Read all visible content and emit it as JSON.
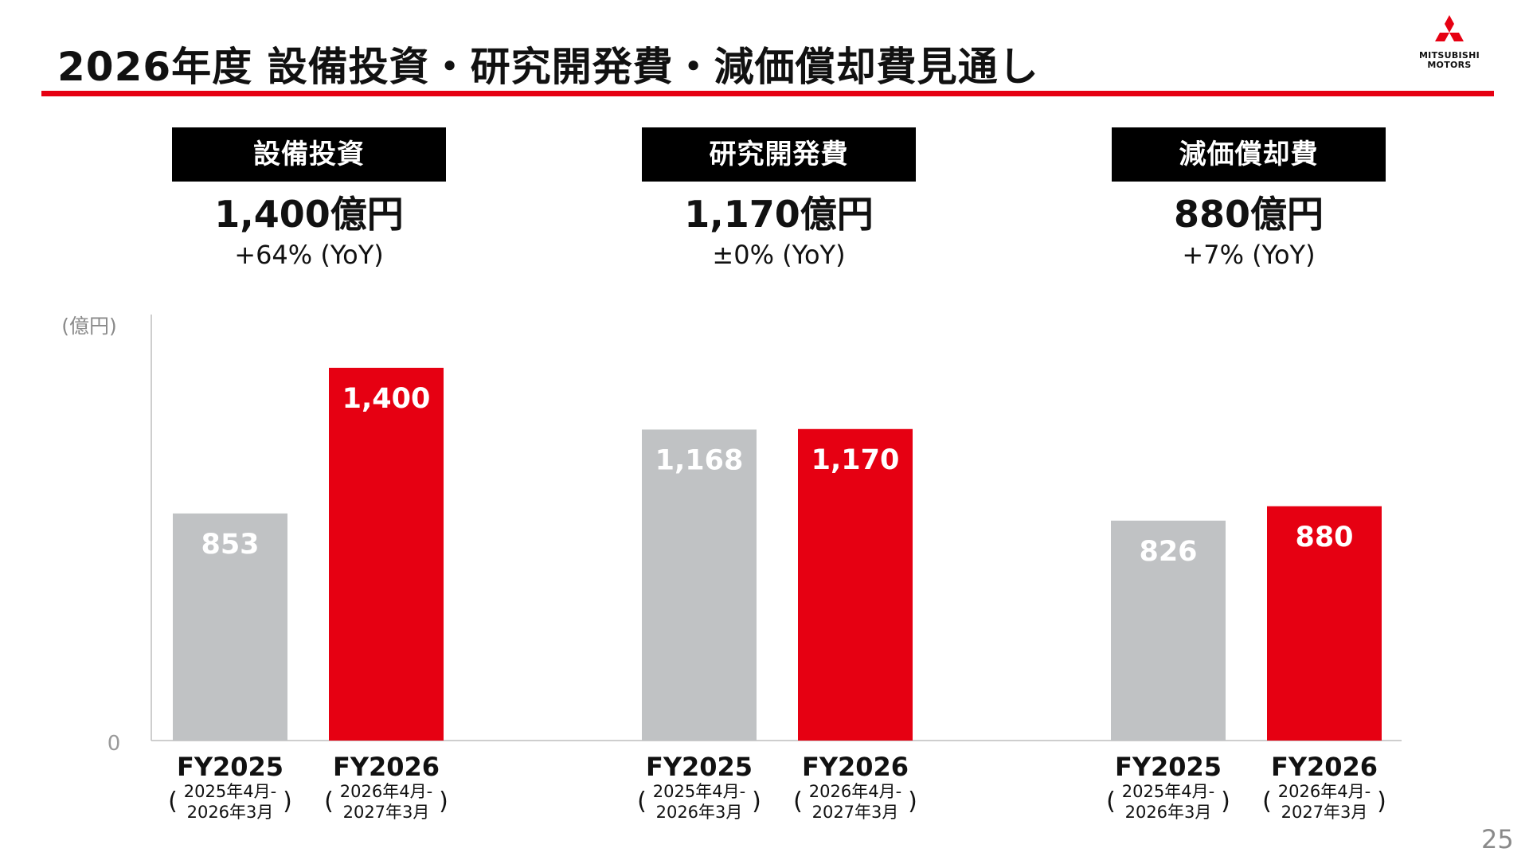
{
  "title": "2026年度 設備投資・研究開発費・減価償却費見通し",
  "logo": {
    "line1": "MITSUBISHI",
    "line2": "MOTORS",
    "icon": "three-diamonds-icon"
  },
  "panels": [
    {
      "label": "設備投資",
      "value": "1,400億円",
      "yoy": "+64% (YoY)"
    },
    {
      "label": "研究開発費",
      "value": "1,170億円",
      "yoy": "±0% (YoY)"
    },
    {
      "label": "減価償却費",
      "value": "880億円",
      "yoy": "+7% (YoY)"
    }
  ],
  "page_number": "25",
  "colors": {
    "accent": "#e60012",
    "prior": "#c0c2c4",
    "axis": "#bdbdbd"
  },
  "chart_data": {
    "type": "bar",
    "ylabel": "(億円)",
    "ylim": [
      0,
      1600
    ],
    "yticks": [
      "0"
    ],
    "grid": false,
    "groups": [
      {
        "label": "設備投資",
        "bars": [
          {
            "category": "FY2025",
            "period_line1": "2025年4月-",
            "period_line2": "2026年3月",
            "value": 853,
            "label": "853",
            "kind": "prior"
          },
          {
            "category": "FY2026",
            "period_line1": "2026年4月-",
            "period_line2": "2027年3月",
            "value": 1400,
            "label": "1,400",
            "kind": "forecast"
          }
        ]
      },
      {
        "label": "研究開発費",
        "bars": [
          {
            "category": "FY2025",
            "period_line1": "2025年4月-",
            "period_line2": "2026年3月",
            "value": 1168,
            "label": "1,168",
            "kind": "prior"
          },
          {
            "category": "FY2026",
            "period_line1": "2026年4月-",
            "period_line2": "2027年3月",
            "value": 1170,
            "label": "1,170",
            "kind": "forecast"
          }
        ]
      },
      {
        "label": "減価償却費",
        "bars": [
          {
            "category": "FY2025",
            "period_line1": "2025年4月-",
            "period_line2": "2026年3月",
            "value": 826,
            "label": "826",
            "kind": "prior"
          },
          {
            "category": "FY2026",
            "period_line1": "2026年4月-",
            "period_line2": "2027年3月",
            "value": 880,
            "label": "880",
            "kind": "forecast"
          }
        ]
      }
    ]
  }
}
